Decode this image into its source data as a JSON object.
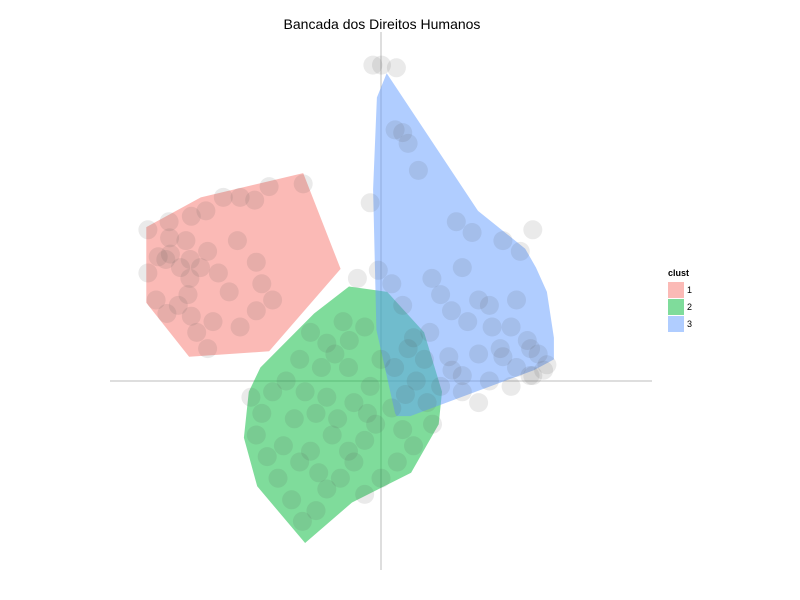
{
  "chart_data": {
    "type": "scatter",
    "title": "Bancada dos Direitos Humanos",
    "xlabel": "",
    "ylabel": "",
    "xlim": [
      -1.0,
      1.0
    ],
    "ylim": [
      -0.7,
      1.3
    ],
    "grid": false,
    "axis_lines": {
      "x": 0,
      "y": 0
    },
    "legend": {
      "title": "clust",
      "position": "right",
      "entries": [
        {
          "label": "1",
          "color": "#F8766D"
        },
        {
          "label": "2",
          "color": "#00BA38"
        },
        {
          "label": "3",
          "color": "#619CFF"
        }
      ]
    },
    "hulls": [
      {
        "cluster": "1",
        "color": "#F8766D",
        "points": [
          [
            -0.665,
            0.68
          ],
          [
            -0.287,
            0.77
          ],
          [
            -0.149,
            0.415
          ],
          [
            -0.413,
            0.11
          ],
          [
            -0.708,
            0.09
          ],
          [
            -0.866,
            0.29
          ],
          [
            -0.866,
            0.57
          ]
        ]
      },
      {
        "cluster": "2",
        "color": "#00BA38",
        "points": [
          [
            -0.118,
            0.35
          ],
          [
            0.023,
            0.33
          ],
          [
            0.159,
            0.18
          ],
          [
            0.225,
            -0.04
          ],
          [
            0.213,
            -0.16
          ],
          [
            0.111,
            -0.34
          ],
          [
            -0.107,
            -0.45
          ],
          [
            -0.28,
            -0.6
          ],
          [
            -0.457,
            -0.39
          ],
          [
            -0.506,
            -0.21
          ],
          [
            -0.488,
            -0.04
          ],
          [
            -0.445,
            0.05
          ],
          [
            -0.247,
            0.25
          ]
        ]
      },
      {
        "cluster": "3",
        "color": "#619CFF",
        "points": [
          [
            0.021,
            1.14
          ],
          [
            0.358,
            0.63
          ],
          [
            0.532,
            0.49
          ],
          [
            0.572,
            0.42
          ],
          [
            0.612,
            0.33
          ],
          [
            0.638,
            0.16
          ],
          [
            0.638,
            0.08
          ],
          [
            0.564,
            0.04
          ],
          [
            0.295,
            -0.06
          ],
          [
            0.108,
            -0.13
          ],
          [
            0.058,
            -0.13
          ],
          [
            0.052,
            -0.12
          ],
          [
            -0.017,
            0.19
          ],
          [
            -0.029,
            0.71
          ],
          [
            -0.015,
            1.05
          ]
        ]
      }
    ],
    "points": [
      [
        -0.03,
        1.17
      ],
      [
        0.002,
        1.17
      ],
      [
        0.057,
        1.16
      ],
      [
        0.052,
        0.93
      ],
      [
        0.08,
        0.92
      ],
      [
        0.1,
        0.88
      ],
      [
        -0.04,
        0.66
      ],
      [
        0.138,
        0.78
      ],
      [
        0.278,
        0.59
      ],
      [
        0.336,
        0.55
      ],
      [
        0.45,
        0.52
      ],
      [
        0.514,
        0.48
      ],
      [
        0.56,
        0.56
      ],
      [
        0.3,
        0.42
      ],
      [
        0.188,
        0.38
      ],
      [
        0.22,
        0.32
      ],
      [
        0.26,
        0.26
      ],
      [
        0.32,
        0.22
      ],
      [
        0.4,
        0.28
      ],
      [
        0.48,
        0.2
      ],
      [
        0.54,
        0.15
      ],
      [
        0.58,
        0.1
      ],
      [
        0.612,
        0.06
      ],
      [
        0.56,
        0.02
      ],
      [
        0.5,
        0.05
      ],
      [
        0.44,
        0.12
      ],
      [
        0.36,
        0.1
      ],
      [
        0.3,
        0.02
      ],
      [
        0.22,
        -0.02
      ],
      [
        0.16,
        0.08
      ],
      [
        0.12,
        0.16
      ],
      [
        0.08,
        0.28
      ],
      [
        0.04,
        0.36
      ],
      [
        -0.01,
        0.41
      ],
      [
        0.262,
        0.04
      ],
      [
        0.4,
        0.0
      ],
      [
        0.48,
        -0.02
      ],
      [
        0.36,
        -0.08
      ],
      [
        0.3,
        -0.04
      ],
      [
        0.55,
        0.02
      ],
      [
        0.45,
        0.09
      ],
      [
        0.05,
        0.05
      ],
      [
        0.1,
        0.12
      ],
      [
        0.18,
        0.18
      ],
      [
        0.41,
        0.2
      ],
      [
        0.5,
        0.3
      ],
      [
        0.552,
        0.12
      ],
      [
        0.6,
        0.04
      ],
      [
        0.25,
        0.09
      ],
      [
        0.36,
        0.3
      ],
      [
        -0.087,
        0.38
      ],
      [
        -0.117,
        0.15
      ],
      [
        -0.17,
        0.1
      ],
      [
        -0.22,
        0.05
      ],
      [
        -0.26,
        0.18
      ],
      [
        -0.3,
        0.08
      ],
      [
        -0.35,
        0.0
      ],
      [
        -0.4,
        -0.04
      ],
      [
        -0.44,
        -0.12
      ],
      [
        -0.46,
        -0.2
      ],
      [
        -0.42,
        -0.28
      ],
      [
        -0.38,
        -0.36
      ],
      [
        -0.33,
        -0.44
      ],
      [
        -0.29,
        -0.52
      ],
      [
        -0.24,
        -0.48
      ],
      [
        -0.2,
        -0.4
      ],
      [
        -0.15,
        -0.36
      ],
      [
        -0.1,
        -0.3
      ],
      [
        -0.06,
        -0.22
      ],
      [
        -0.02,
        -0.16
      ],
      [
        0.04,
        -0.1
      ],
      [
        0.09,
        -0.05
      ],
      [
        0.13,
        0.0
      ],
      [
        0.17,
        -0.08
      ],
      [
        0.19,
        -0.16
      ],
      [
        0.12,
        -0.24
      ],
      [
        0.06,
        -0.3
      ],
      [
        0.0,
        -0.36
      ],
      [
        -0.06,
        -0.42
      ],
      [
        -0.12,
        -0.26
      ],
      [
        -0.18,
        -0.2
      ],
      [
        -0.24,
        -0.12
      ],
      [
        -0.28,
        -0.04
      ],
      [
        -0.32,
        -0.14
      ],
      [
        -0.36,
        -0.24
      ],
      [
        -0.3,
        -0.3
      ],
      [
        -0.23,
        -0.34
      ],
      [
        -0.16,
        -0.14
      ],
      [
        -0.1,
        -0.08
      ],
      [
        -0.04,
        -0.02
      ],
      [
        0.0,
        0.08
      ],
      [
        -0.06,
        0.2
      ],
      [
        -0.14,
        0.22
      ],
      [
        -0.2,
        -0.06
      ],
      [
        -0.26,
        -0.26
      ],
      [
        -0.05,
        -0.12
      ],
      [
        0.08,
        -0.18
      ],
      [
        -0.48,
        -0.06
      ],
      [
        -0.12,
        0.05
      ],
      [
        -0.2,
        0.14
      ],
      [
        -0.287,
        0.73
      ],
      [
        -0.413,
        0.72
      ],
      [
        -0.466,
        0.67
      ],
      [
        -0.52,
        0.68
      ],
      [
        -0.582,
        0.68
      ],
      [
        -0.646,
        0.63
      ],
      [
        -0.7,
        0.61
      ],
      [
        -0.782,
        0.59
      ],
      [
        -0.86,
        0.56
      ],
      [
        -0.78,
        0.53
      ],
      [
        -0.72,
        0.52
      ],
      [
        -0.64,
        0.48
      ],
      [
        -0.704,
        0.45
      ],
      [
        -0.777,
        0.47
      ],
      [
        -0.794,
        0.45
      ],
      [
        -0.822,
        0.46
      ],
      [
        -0.86,
        0.4
      ],
      [
        -0.74,
        0.42
      ],
      [
        -0.666,
        0.42
      ],
      [
        -0.705,
        0.38
      ],
      [
        -0.712,
        0.32
      ],
      [
        -0.748,
        0.28
      ],
      [
        -0.79,
        0.25
      ],
      [
        -0.83,
        0.3
      ],
      [
        -0.68,
        0.18
      ],
      [
        -0.64,
        0.12
      ],
      [
        -0.7,
        0.24
      ],
      [
        -0.56,
        0.33
      ],
      [
        -0.44,
        0.36
      ],
      [
        -0.46,
        0.44
      ],
      [
        -0.53,
        0.52
      ],
      [
        -0.6,
        0.4
      ],
      [
        -0.62,
        0.22
      ],
      [
        -0.52,
        0.2
      ],
      [
        -0.46,
        0.26
      ],
      [
        -0.4,
        0.3
      ]
    ]
  }
}
